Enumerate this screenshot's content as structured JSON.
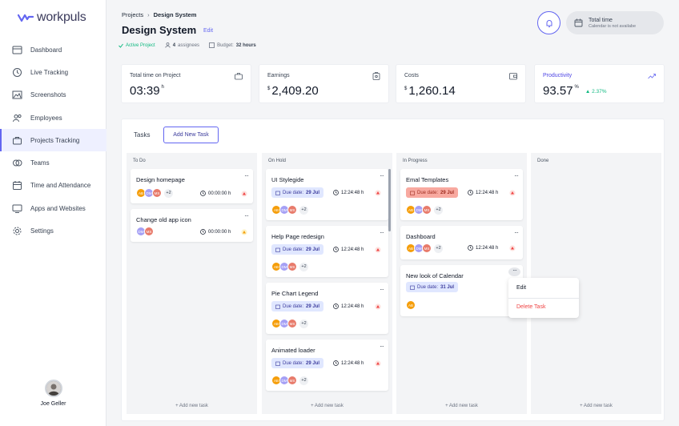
{
  "app": {
    "name": "workpuls",
    "accent": "#6366f1"
  },
  "sidebar": {
    "items": [
      {
        "label": "Dashboard",
        "icon": "dashboard-icon"
      },
      {
        "label": "Live Tracking",
        "icon": "live-tracking-icon"
      },
      {
        "label": "Screenshots",
        "icon": "screenshots-icon"
      },
      {
        "label": "Employees",
        "icon": "employees-icon"
      },
      {
        "label": "Projects Tracking",
        "icon": "projects-icon",
        "active": true
      },
      {
        "label": "Teams",
        "icon": "teams-icon"
      },
      {
        "label": "Time and Attendance",
        "icon": "calendar-icon"
      },
      {
        "label": "Apps and Websites",
        "icon": "monitor-icon"
      },
      {
        "label": "Settings",
        "icon": "gear-icon"
      }
    ],
    "user_name": "Joe Geller"
  },
  "header": {
    "breadcrumb_root": "Projects",
    "breadcrumb_current": "Design System",
    "title": "Design System",
    "edit_label": "Edit",
    "status": "Active Project",
    "assignees_count": "4",
    "assignees_label": "assignees",
    "budget_label": "Budget:",
    "budget_value": "32 hours",
    "total_time_label": "Total time",
    "total_time_sub": "Calendar is not availabe"
  },
  "stats": [
    {
      "label": "Total time on Project",
      "value": "03:39",
      "unit": "h",
      "icon": "briefcase-icon"
    },
    {
      "label": "Earnings",
      "value": "2,409.20",
      "unit": "$",
      "icon": "receipt-icon"
    },
    {
      "label": "Costs",
      "value": "1,260.14",
      "unit": "$",
      "icon": "wallet-icon"
    },
    {
      "label": "Productivity",
      "value": "93.57",
      "unit": "%",
      "delta": "2.37%",
      "icon": "trend-icon"
    }
  ],
  "board": {
    "tasks_label": "Tasks",
    "add_task_label": "Add New Task",
    "add_new_task_footer": "+ Add new task",
    "columns": [
      {
        "title": "To Do",
        "cards": [
          {
            "title": "Design homepage",
            "avatars": [
              "AB",
              "DM",
              "MS"
            ],
            "extra": "+2",
            "time": "00:00:00 h",
            "priority": "high"
          },
          {
            "title": "Change old app icon",
            "avatars": [
              "DM",
              "MS"
            ],
            "extra": "",
            "time": "00:00:00 h",
            "priority": "low"
          }
        ]
      },
      {
        "title": "On Hold",
        "cards": [
          {
            "title": "UI Stylegide",
            "due_label": "Due date:",
            "due": "29 Jul",
            "time": "12:24:48 h",
            "avatars": [
              "AB",
              "DM",
              "MS"
            ],
            "extra": "+2",
            "priority": "high"
          },
          {
            "title": "Help Page redesign",
            "due_label": "Due date:",
            "due": "29 Jul",
            "time": "12:24:48 h",
            "avatars": [
              "AB",
              "DM",
              "MS"
            ],
            "extra": "+2",
            "priority": "high"
          },
          {
            "title": "Pie Chart Legend",
            "due_label": "Due date:",
            "due": "29 Jul",
            "time": "12:24:48 h",
            "avatars": [
              "AB",
              "DM",
              "MS"
            ],
            "extra": "+2",
            "priority": "high"
          },
          {
            "title": "Animated loader",
            "due_label": "Due date:",
            "due": "29 Jul",
            "time": "12:24:48 h",
            "avatars": [
              "AB",
              "DM",
              "MS"
            ],
            "extra": "+2",
            "priority": "high"
          }
        ]
      },
      {
        "title": "In Progress",
        "cards": [
          {
            "title": "Emal Templates",
            "due_label": "Due date:",
            "due": "29 Jul",
            "late": true,
            "time": "12:24:48 h",
            "avatars": [
              "AB",
              "DM",
              "MS"
            ],
            "extra": "+2",
            "priority": "high"
          },
          {
            "title": "Dashboard",
            "time": "12:24:48 h",
            "avatars": [
              "AB",
              "DM",
              "MS"
            ],
            "extra": "+2",
            "priority": "high"
          },
          {
            "title": "New look of Calendar",
            "due_label": "Due date:",
            "due": "31 Jul",
            "avatars": [
              "AB"
            ],
            "extra": ""
          }
        ]
      },
      {
        "title": "Done",
        "cards": []
      }
    ]
  },
  "context_menu": {
    "edit": "Edit",
    "delete": "Delete Task"
  }
}
